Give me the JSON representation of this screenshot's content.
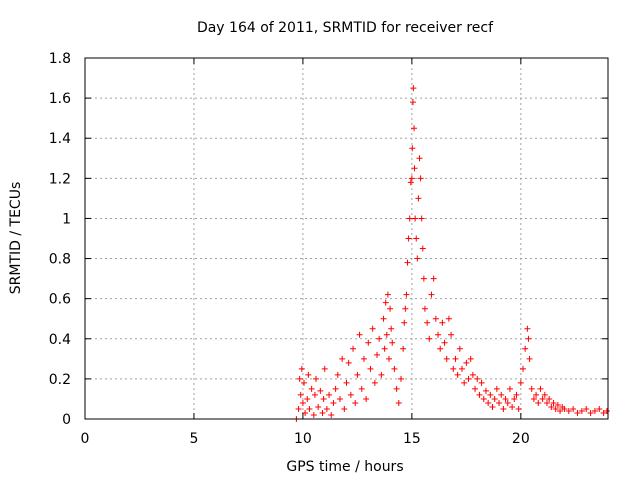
{
  "chart_data": {
    "type": "scatter",
    "title": "Day 164 of 2011, SRMTID for receiver recf",
    "xlabel": "GPS time / hours",
    "ylabel": "SRMTID / TECUs",
    "xlim": [
      0,
      24
    ],
    "ylim": [
      0,
      1.8
    ],
    "grid": true,
    "marker": "+",
    "colors": {
      "points": "#ff0000",
      "grid": "#a0a0a0",
      "axes": "#000000"
    },
    "x_ticks": [
      0,
      5,
      10,
      15,
      20
    ],
    "x_tick_labels": [
      "0",
      "5",
      "10",
      "15",
      "20"
    ],
    "y_ticks": [
      0,
      0.2,
      0.4,
      0.6,
      0.8,
      1,
      1.2,
      1.4,
      1.6,
      1.8
    ],
    "y_tick_labels": [
      "0",
      "0.2",
      "0.4",
      "0.6",
      "0.8",
      "1",
      "1.2",
      "1.4",
      "1.6",
      "1.8"
    ],
    "series": [
      {
        "points": [
          [
            9.7,
            0.0
          ],
          [
            9.8,
            0.05
          ],
          [
            9.85,
            0.2
          ],
          [
            9.9,
            0.12
          ],
          [
            9.95,
            0.25
          ],
          [
            10.0,
            0.08
          ],
          [
            10.05,
            0.18
          ],
          [
            10.1,
            0.03
          ],
          [
            10.2,
            0.1
          ],
          [
            10.25,
            0.22
          ],
          [
            10.3,
            0.05
          ],
          [
            10.4,
            0.15
          ],
          [
            10.5,
            0.02
          ],
          [
            10.55,
            0.12
          ],
          [
            10.6,
            0.2
          ],
          [
            10.7,
            0.06
          ],
          [
            10.8,
            0.14
          ],
          [
            10.9,
            0.03
          ],
          [
            10.95,
            0.1
          ],
          [
            11.0,
            0.25
          ],
          [
            11.1,
            0.05
          ],
          [
            11.2,
            0.12
          ],
          [
            11.3,
            0.02
          ],
          [
            11.4,
            0.08
          ],
          [
            11.5,
            0.15
          ],
          [
            11.6,
            0.22
          ],
          [
            11.7,
            0.1
          ],
          [
            11.8,
            0.3
          ],
          [
            11.9,
            0.05
          ],
          [
            12.0,
            0.18
          ],
          [
            12.1,
            0.28
          ],
          [
            12.2,
            0.12
          ],
          [
            12.3,
            0.35
          ],
          [
            12.4,
            0.08
          ],
          [
            12.5,
            0.22
          ],
          [
            12.6,
            0.42
          ],
          [
            12.7,
            0.15
          ],
          [
            12.8,
            0.3
          ],
          [
            12.9,
            0.1
          ],
          [
            13.0,
            0.38
          ],
          [
            13.1,
            0.25
          ],
          [
            13.2,
            0.45
          ],
          [
            13.3,
            0.18
          ],
          [
            13.4,
            0.32
          ],
          [
            13.5,
            0.4
          ],
          [
            13.6,
            0.22
          ],
          [
            13.7,
            0.5
          ],
          [
            13.75,
            0.35
          ],
          [
            13.8,
            0.58
          ],
          [
            13.85,
            0.42
          ],
          [
            13.9,
            0.62
          ],
          [
            13.95,
            0.3
          ],
          [
            14.0,
            0.55
          ],
          [
            14.05,
            0.45
          ],
          [
            14.1,
            0.38
          ],
          [
            14.2,
            0.25
          ],
          [
            14.3,
            0.15
          ],
          [
            14.4,
            0.08
          ],
          [
            14.5,
            0.2
          ],
          [
            14.6,
            0.35
          ],
          [
            14.65,
            0.48
          ],
          [
            14.7,
            0.55
          ],
          [
            14.75,
            0.62
          ],
          [
            14.8,
            0.78
          ],
          [
            14.85,
            0.9
          ],
          [
            14.9,
            1.0
          ],
          [
            14.95,
            1.18
          ],
          [
            15.0,
            1.2
          ],
          [
            15.02,
            1.35
          ],
          [
            15.05,
            1.58
          ],
          [
            15.07,
            1.65
          ],
          [
            15.1,
            1.45
          ],
          [
            15.12,
            1.25
          ],
          [
            15.15,
            1.0
          ],
          [
            15.2,
            0.9
          ],
          [
            15.25,
            0.8
          ],
          [
            15.3,
            1.1
          ],
          [
            15.35,
            1.3
          ],
          [
            15.4,
            1.2
          ],
          [
            15.45,
            1.0
          ],
          [
            15.5,
            0.85
          ],
          [
            15.55,
            0.7
          ],
          [
            15.6,
            0.55
          ],
          [
            15.7,
            0.48
          ],
          [
            15.8,
            0.4
          ],
          [
            15.9,
            0.62
          ],
          [
            16.0,
            0.7
          ],
          [
            16.1,
            0.5
          ],
          [
            16.2,
            0.42
          ],
          [
            16.3,
            0.35
          ],
          [
            16.4,
            0.48
          ],
          [
            16.5,
            0.38
          ],
          [
            16.6,
            0.3
          ],
          [
            16.7,
            0.5
          ],
          [
            16.8,
            0.42
          ],
          [
            16.9,
            0.25
          ],
          [
            17.0,
            0.3
          ],
          [
            17.1,
            0.22
          ],
          [
            17.2,
            0.35
          ],
          [
            17.3,
            0.25
          ],
          [
            17.4,
            0.18
          ],
          [
            17.5,
            0.28
          ],
          [
            17.6,
            0.2
          ],
          [
            17.7,
            0.3
          ],
          [
            17.8,
            0.22
          ],
          [
            17.9,
            0.15
          ],
          [
            18.0,
            0.2
          ],
          [
            18.1,
            0.12
          ],
          [
            18.2,
            0.18
          ],
          [
            18.3,
            0.1
          ],
          [
            18.4,
            0.14
          ],
          [
            18.5,
            0.08
          ],
          [
            18.6,
            0.12
          ],
          [
            18.7,
            0.06
          ],
          [
            18.8,
            0.1
          ],
          [
            18.9,
            0.15
          ],
          [
            19.0,
            0.08
          ],
          [
            19.1,
            0.12
          ],
          [
            19.2,
            0.05
          ],
          [
            19.3,
            0.1
          ],
          [
            19.4,
            0.08
          ],
          [
            19.5,
            0.15
          ],
          [
            19.6,
            0.06
          ],
          [
            19.7,
            0.1
          ],
          [
            19.8,
            0.12
          ],
          [
            19.9,
            0.05
          ],
          [
            20.0,
            0.18
          ],
          [
            20.1,
            0.25
          ],
          [
            20.2,
            0.35
          ],
          [
            20.3,
            0.45
          ],
          [
            20.35,
            0.4
          ],
          [
            20.4,
            0.3
          ],
          [
            20.5,
            0.15
          ],
          [
            20.6,
            0.1
          ],
          [
            20.7,
            0.12
          ],
          [
            20.8,
            0.08
          ],
          [
            20.9,
            0.15
          ],
          [
            21.0,
            0.1
          ],
          [
            21.1,
            0.12
          ],
          [
            21.2,
            0.08
          ],
          [
            21.3,
            0.1
          ],
          [
            21.4,
            0.06
          ],
          [
            21.5,
            0.08
          ],
          [
            21.6,
            0.05
          ],
          [
            21.7,
            0.07
          ],
          [
            21.8,
            0.04
          ],
          [
            21.9,
            0.06
          ],
          [
            22.0,
            0.05
          ],
          [
            22.2,
            0.04
          ],
          [
            22.4,
            0.05
          ],
          [
            22.6,
            0.03
          ],
          [
            22.8,
            0.04
          ],
          [
            23.0,
            0.05
          ],
          [
            23.2,
            0.03
          ],
          [
            23.4,
            0.04
          ],
          [
            23.6,
            0.05
          ],
          [
            23.8,
            0.03
          ],
          [
            23.95,
            0.04
          ]
        ]
      }
    ]
  }
}
